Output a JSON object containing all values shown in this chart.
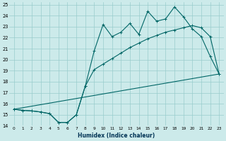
{
  "xlabel": "Humidex (Indice chaleur)",
  "bg_color": "#cceaea",
  "grid_color": "#99cccc",
  "line_color": "#006666",
  "xlim": [
    -0.5,
    23.5
  ],
  "ylim": [
    14,
    25.2
  ],
  "yticks": [
    14,
    15,
    16,
    17,
    18,
    19,
    20,
    21,
    22,
    23,
    24,
    25
  ],
  "xticks": [
    0,
    1,
    2,
    3,
    4,
    5,
    6,
    7,
    8,
    9,
    10,
    11,
    12,
    13,
    14,
    15,
    16,
    17,
    18,
    19,
    20,
    21,
    22,
    23
  ],
  "line1_x": [
    0,
    1,
    2,
    3,
    4,
    5,
    6,
    7,
    8,
    9,
    10,
    11,
    12,
    13,
    14,
    15,
    16,
    17,
    18,
    19,
    20,
    21,
    22,
    23
  ],
  "line1_y": [
    15.5,
    15.4,
    15.35,
    15.25,
    15.1,
    14.3,
    14.3,
    15.0,
    17.6,
    20.8,
    23.2,
    22.1,
    22.5,
    23.3,
    22.3,
    24.4,
    23.5,
    23.7,
    24.8,
    23.9,
    22.8,
    22.1,
    20.3,
    18.7
  ],
  "line2_x": [
    0,
    1,
    2,
    3,
    4,
    5,
    6,
    7,
    8,
    9,
    10,
    11,
    12,
    13,
    14,
    15,
    16,
    17,
    18,
    19,
    20,
    21,
    22,
    23
  ],
  "line2_y": [
    15.5,
    15.4,
    15.35,
    15.25,
    15.1,
    14.3,
    14.3,
    15.0,
    17.6,
    19.1,
    19.6,
    20.1,
    20.6,
    21.1,
    21.5,
    21.9,
    22.2,
    22.5,
    22.7,
    22.9,
    23.1,
    22.9,
    22.1,
    18.7
  ],
  "line3_x": [
    0,
    23
  ],
  "line3_y": [
    15.5,
    18.7
  ]
}
